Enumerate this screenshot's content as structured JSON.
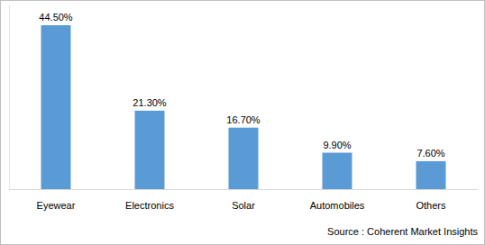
{
  "chart_data": {
    "type": "bar",
    "categories": [
      "Eyewear",
      "Electronics",
      "Solar",
      "Automobiles",
      "Others"
    ],
    "values": [
      44.5,
      21.3,
      16.7,
      9.9,
      7.6
    ],
    "value_labels": [
      "44.50%",
      "21.30%",
      "16.70%",
      "9.90%",
      "7.60%"
    ],
    "color": "#5b9bd5",
    "ylim": [
      0,
      50
    ],
    "grid": false,
    "data_labels": true,
    "tick_labels": "x",
    "annotation": "Source : Coherent Market Insights"
  }
}
